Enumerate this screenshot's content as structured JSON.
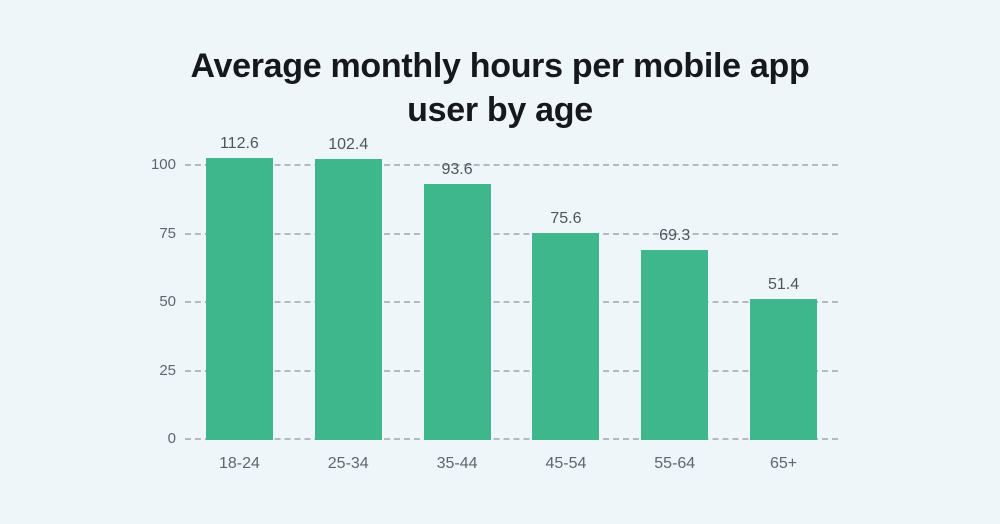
{
  "page": {
    "background_color": "#eef6fa"
  },
  "chart": {
    "title_lines": [
      "Average monthly hours per mobile app",
      "user by age"
    ]
  },
  "chart_data": {
    "type": "bar",
    "title": "Average monthly hours per mobile app user by age",
    "categories": [
      "18-24",
      "25-34",
      "35-44",
      "45-54",
      "55-64",
      "65+"
    ],
    "values": [
      112.6,
      102.4,
      93.6,
      75.6,
      69.3,
      51.4
    ],
    "data_labels": [
      "112.6",
      "102.4",
      "93.6",
      "75.6",
      "69.3",
      "51.4"
    ],
    "xlabel": "",
    "ylabel": "",
    "y_ticks": [
      0,
      25,
      50,
      75,
      100
    ],
    "ylim": [
      0,
      103
    ],
    "grid": "horizontal-dashed",
    "legend": "none",
    "bar_color": "#3db78b",
    "grid_color": "#b3bbc2",
    "background_color": "#eef6fa",
    "title_color": "#15181c",
    "data_label_color": "#50555b",
    "axis_tick_color": "#5e666f"
  }
}
